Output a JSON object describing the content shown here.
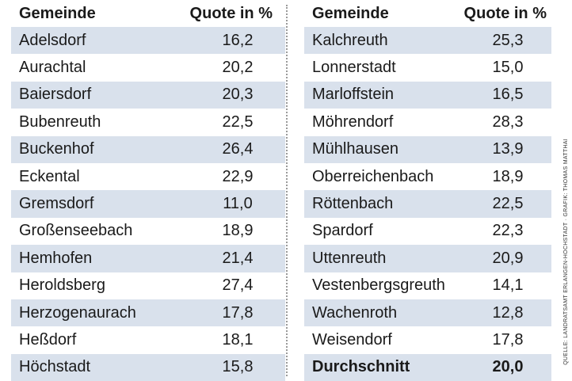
{
  "header": {
    "col_name": "Gemeinde",
    "col_value": "Quote in %"
  },
  "left_rows": [
    {
      "name": "Adelsdorf",
      "value": "16,2"
    },
    {
      "name": "Aurachtal",
      "value": "20,2"
    },
    {
      "name": "Baiersdorf",
      "value": "20,3"
    },
    {
      "name": "Bubenreuth",
      "value": "22,5"
    },
    {
      "name": "Buckenhof",
      "value": "26,4"
    },
    {
      "name": "Eckental",
      "value": "22,9"
    },
    {
      "name": "Gremsdorf",
      "value": "11,0"
    },
    {
      "name": "Großenseebach",
      "value": "18,9"
    },
    {
      "name": "Hemhofen",
      "value": "21,4"
    },
    {
      "name": "Heroldsberg",
      "value": "27,4"
    },
    {
      "name": "Herzogenaurach",
      "value": "17,8"
    },
    {
      "name": "Heßdorf",
      "value": "18,1"
    },
    {
      "name": "Höchstadt",
      "value": "15,8"
    }
  ],
  "right_rows": [
    {
      "name": "Kalchreuth",
      "value": "25,3"
    },
    {
      "name": "Lonnerstadt",
      "value": "15,0"
    },
    {
      "name": "Marloffstein",
      "value": "16,5"
    },
    {
      "name": "Möhrendorf",
      "value": "28,3"
    },
    {
      "name": "Mühlhausen",
      "value": "13,9"
    },
    {
      "name": "Oberreichenbach",
      "value": "18,9"
    },
    {
      "name": "Röttenbach",
      "value": "22,5"
    },
    {
      "name": "Spardorf",
      "value": "22,3"
    },
    {
      "name": "Uttenreuth",
      "value": "20,9"
    },
    {
      "name": "Vestenbergsgreuth",
      "value": "14,1"
    },
    {
      "name": "Wachenroth",
      "value": "12,8"
    },
    {
      "name": "Weisendorf",
      "value": "17,8"
    },
    {
      "name": "Durchschnitt",
      "value": "20,0"
    }
  ],
  "credit": "QUELLE: LANDRATSAMT ERLANGEN-HÖCHSTADT · GRAFIK: THOMAS MATTHAI",
  "colors": {
    "shade": "#d9e1ec",
    "text": "#1a1a1a"
  }
}
